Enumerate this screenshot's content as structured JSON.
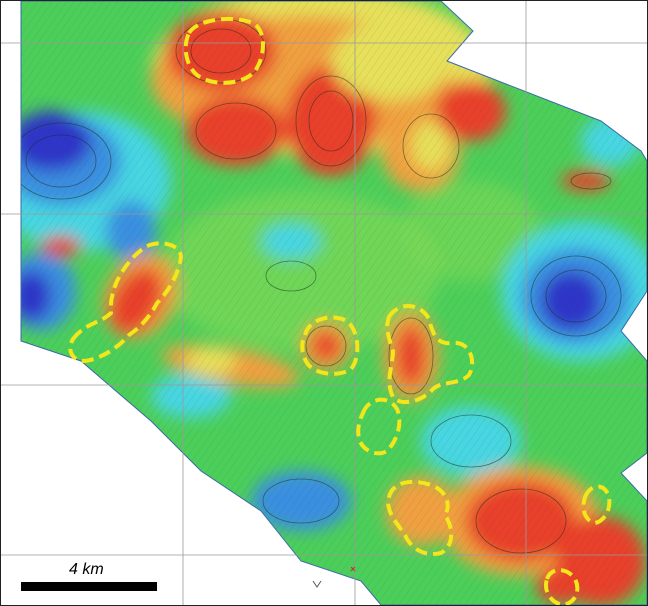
{
  "scale": {
    "label": "4 km"
  },
  "colors": {
    "low": "#2f35c8",
    "low_mid": "#3a8fe0",
    "cyan": "#46d6e2",
    "green": "#4ccf5a",
    "green_light": "#7ed957",
    "yellow": "#e6e05a",
    "orange": "#f0a040",
    "red": "#e8412c",
    "highlight": "#f3e61a",
    "grid": "#9a9a9a"
  },
  "features": {
    "highlighted_zones": 11,
    "grid": true
  }
}
